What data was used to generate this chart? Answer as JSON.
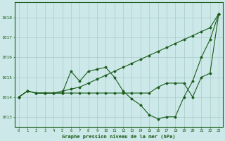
{
  "bg_color": "#cce8e8",
  "grid_color": "#aacccc",
  "line_color": "#1a5c1a",
  "title": "Graphe pression niveau de la mer (hPa)",
  "xlim": [
    -0.5,
    23.5
  ],
  "ylim": [
    1012.5,
    1018.8
  ],
  "yticks": [
    1013,
    1014,
    1015,
    1016,
    1017,
    1018
  ],
  "xticks": [
    0,
    1,
    2,
    3,
    4,
    5,
    6,
    7,
    8,
    9,
    10,
    11,
    12,
    13,
    14,
    15,
    16,
    17,
    18,
    19,
    20,
    21,
    22,
    23
  ],
  "s1": [
    1014.0,
    1014.3,
    1014.2,
    1014.2,
    1014.2,
    1014.2,
    1015.3,
    1014.8,
    1015.3,
    1015.4,
    1015.5,
    1015.0,
    1014.3,
    1013.9,
    1013.6,
    1013.1,
    1012.9,
    1013.0,
    1013.0,
    1014.0,
    1014.8,
    1016.0,
    1016.9,
    1018.2
  ],
  "s2": [
    1014.0,
    1014.3,
    1014.2,
    1014.2,
    1014.2,
    1014.2,
    1014.2,
    1014.2,
    1014.2,
    1014.2,
    1014.2,
    1014.2,
    1014.2,
    1014.2,
    1014.2,
    1014.2,
    1014.5,
    1014.7,
    1014.7,
    1014.7,
    1014.0,
    1015.0,
    1015.2,
    1018.2
  ],
  "s3": [
    1014.0,
    1014.3,
    1014.2,
    1014.2,
    1014.2,
    1014.3,
    1014.4,
    1014.5,
    1014.7,
    1014.9,
    1015.1,
    1015.3,
    1015.5,
    1015.7,
    1015.9,
    1016.1,
    1016.3,
    1016.5,
    1016.7,
    1016.9,
    1017.1,
    1017.3,
    1017.5,
    1018.2
  ]
}
